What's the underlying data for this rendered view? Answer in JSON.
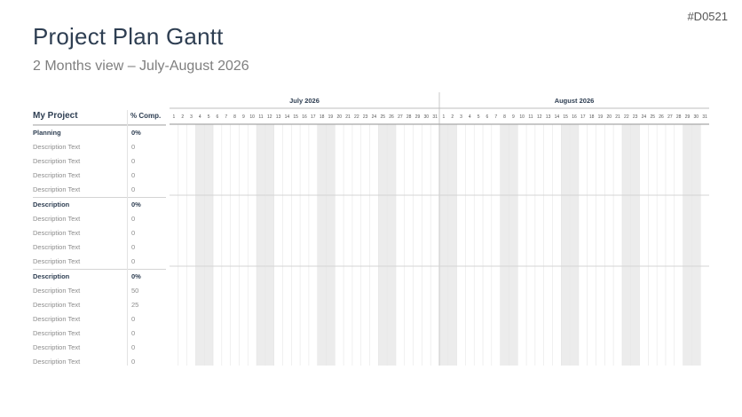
{
  "doc_id": "#D0521",
  "title": "Project Plan Gantt",
  "subtitle": "2 Months view – July-August 2026",
  "table": {
    "project_label": "My Project",
    "percent_label": "% Comp."
  },
  "months": [
    {
      "label": "July 2026",
      "days": 31
    },
    {
      "label": "August 2026",
      "days": 31
    }
  ],
  "rows": [
    {
      "name": "Planning",
      "value": "0%",
      "section": true
    },
    {
      "name": "Description Text",
      "value": "0",
      "section": false
    },
    {
      "name": "Description Text",
      "value": "0",
      "section": false
    },
    {
      "name": "Description Text",
      "value": "0",
      "section": false
    },
    {
      "name": "Description Text",
      "value": "0",
      "section": false
    },
    {
      "name": "Description",
      "value": "0%",
      "section": true
    },
    {
      "name": "Description Text",
      "value": "0",
      "section": false
    },
    {
      "name": "Description Text",
      "value": "0",
      "section": false
    },
    {
      "name": "Description Text",
      "value": "0",
      "section": false
    },
    {
      "name": "Description Text",
      "value": "0",
      "section": false
    },
    {
      "name": "Description",
      "value": "0%",
      "section": true
    },
    {
      "name": "Description Text",
      "value": "50",
      "section": false
    },
    {
      "name": "Description Text",
      "value": "25",
      "section": false
    },
    {
      "name": "Description Text",
      "value": "0",
      "section": false
    },
    {
      "name": "Description Text",
      "value": "0",
      "section": false
    },
    {
      "name": "Description Text",
      "value": "0",
      "section": false
    },
    {
      "name": "Description Text",
      "value": "0",
      "section": false
    }
  ],
  "weekend_days": {
    "July 2026": [
      4,
      5,
      11,
      12,
      18,
      19,
      25,
      26
    ],
    "August 2026": [
      1,
      2,
      8,
      9,
      15,
      16,
      22,
      23,
      29,
      30
    ]
  },
  "colors": {
    "title": "#2e3e52",
    "weekend_shade": "#ececec",
    "grid_line": "#e6e6e6"
  }
}
